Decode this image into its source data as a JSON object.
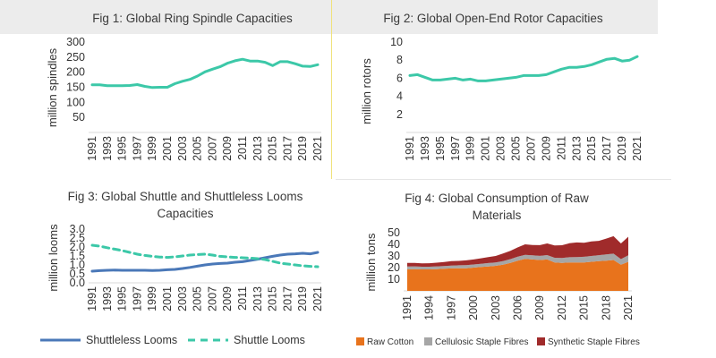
{
  "colors": {
    "teal": "#3cc8a8",
    "blue": "#4a78b8",
    "raw_cotton": "#e8731c",
    "cellulosic": "#a6a6a6",
    "synthetic": "#a02b2b",
    "axis": "#d9d9d9",
    "text": "#333333"
  },
  "chart_data": [
    {
      "type": "line",
      "title": "Fig 1: Global Ring Spindle Capacities",
      "ylabel": "million spindles",
      "xlabel": "",
      "yticks": [
        50,
        100,
        150,
        200,
        250,
        300
      ],
      "ylim": [
        0,
        300
      ],
      "grid": false,
      "x": [
        1991,
        1992,
        1993,
        1994,
        1995,
        1996,
        1997,
        1998,
        1999,
        2000,
        2001,
        2002,
        2003,
        2004,
        2005,
        2006,
        2007,
        2008,
        2009,
        2010,
        2011,
        2012,
        2013,
        2014,
        2015,
        2016,
        2017,
        2018,
        2019,
        2020,
        2021
      ],
      "xticks": [
        1991,
        1993,
        1995,
        1997,
        1999,
        2001,
        2003,
        2005,
        2007,
        2009,
        2011,
        2013,
        2015,
        2017,
        2019,
        2021
      ],
      "series": [
        {
          "values": [
            158,
            158,
            155,
            155,
            155,
            156,
            159,
            153,
            149,
            150,
            150,
            162,
            170,
            176,
            187,
            201,
            210,
            218,
            230,
            238,
            243,
            237,
            237,
            233,
            222,
            235,
            235,
            228,
            220,
            219,
            225
          ]
        }
      ]
    },
    {
      "type": "line",
      "title": "Fig 2: Global Open-End Rotor Capacities",
      "ylabel": "million rotors",
      "xlabel": "",
      "yticks": [
        2,
        4,
        6,
        8,
        10
      ],
      "ylim": [
        0,
        10
      ],
      "grid": false,
      "x": [
        1991,
        1992,
        1993,
        1994,
        1995,
        1996,
        1997,
        1998,
        1999,
        2000,
        2001,
        2002,
        2003,
        2004,
        2005,
        2006,
        2007,
        2008,
        2009,
        2010,
        2011,
        2012,
        2013,
        2014,
        2015,
        2016,
        2017,
        2018,
        2019,
        2020,
        2021
      ],
      "xticks": [
        1991,
        1993,
        1995,
        1997,
        1999,
        2001,
        2003,
        2005,
        2007,
        2009,
        2011,
        2013,
        2015,
        2017,
        2019,
        2021
      ],
      "series": [
        {
          "values": [
            6.3,
            6.4,
            6.1,
            5.8,
            5.8,
            5.9,
            6.0,
            5.8,
            5.9,
            5.7,
            5.7,
            5.8,
            5.9,
            6.0,
            6.1,
            6.3,
            6.3,
            6.3,
            6.4,
            6.7,
            7.0,
            7.2,
            7.2,
            7.3,
            7.5,
            7.8,
            8.1,
            8.2,
            7.9,
            8.0,
            8.4
          ]
        }
      ]
    },
    {
      "type": "line",
      "title": "Fig 3: Global Shuttle and Shuttleless Looms Capacities",
      "title_lines": [
        "Fig 3: Global Shuttle and Shuttleless Looms",
        "Capacities"
      ],
      "ylabel": "million looms",
      "xlabel": "",
      "yticks": [
        "0.0",
        "0.5",
        "1.0",
        "1.5",
        "2.0",
        "2.5",
        "3.0"
      ],
      "ylim": [
        0,
        3
      ],
      "grid": false,
      "legend": "bottom",
      "x": [
        1991,
        1992,
        1993,
        1994,
        1995,
        1996,
        1997,
        1998,
        1999,
        2000,
        2001,
        2002,
        2003,
        2004,
        2005,
        2006,
        2007,
        2008,
        2009,
        2010,
        2011,
        2012,
        2013,
        2014,
        2015,
        2016,
        2017,
        2018,
        2019,
        2020,
        2021
      ],
      "xticks": [
        1991,
        1993,
        1995,
        1997,
        1999,
        2001,
        2003,
        2005,
        2007,
        2009,
        2011,
        2013,
        2015,
        2017,
        2019,
        2021
      ],
      "series": [
        {
          "name": "Shuttleless Looms",
          "style": "solid",
          "values": [
            0.65,
            0.68,
            0.7,
            0.71,
            0.7,
            0.7,
            0.7,
            0.7,
            0.69,
            0.7,
            0.73,
            0.75,
            0.8,
            0.86,
            0.93,
            1.0,
            1.05,
            1.08,
            1.1,
            1.15,
            1.18,
            1.25,
            1.32,
            1.4,
            1.48,
            1.55,
            1.6,
            1.62,
            1.65,
            1.62,
            1.7
          ]
        },
        {
          "name": "Shuttle Looms",
          "style": "dashed",
          "values": [
            2.1,
            2.05,
            1.96,
            1.88,
            1.8,
            1.7,
            1.6,
            1.53,
            1.48,
            1.44,
            1.42,
            1.45,
            1.5,
            1.55,
            1.58,
            1.6,
            1.55,
            1.48,
            1.45,
            1.42,
            1.4,
            1.38,
            1.35,
            1.3,
            1.2,
            1.1,
            1.05,
            1.0,
            0.95,
            0.92,
            0.9
          ]
        }
      ]
    },
    {
      "type": "area",
      "stacked": true,
      "title": "Fig 4: Global Consumption of Raw Materials",
      "title_lines": [
        "Fig 4: Global Consumption of Raw",
        "Materials"
      ],
      "ylabel": "million tons",
      "xlabel": "",
      "yticks": [
        10,
        20,
        30,
        40,
        50
      ],
      "ylim": [
        0,
        50
      ],
      "grid": false,
      "legend": "bottom",
      "x": [
        1991,
        1992,
        1993,
        1994,
        1995,
        1996,
        1997,
        1998,
        1999,
        2000,
        2001,
        2002,
        2003,
        2004,
        2005,
        2006,
        2007,
        2008,
        2009,
        2010,
        2011,
        2012,
        2013,
        2014,
        2015,
        2016,
        2017,
        2018,
        2019,
        2020,
        2021
      ],
      "xticks": [
        1991,
        1994,
        1997,
        2000,
        2003,
        2006,
        2009,
        2012,
        2015,
        2018,
        2021
      ],
      "series": [
        {
          "name": "Raw Cotton",
          "values": [
            18.5,
            18.7,
            18.5,
            18.5,
            18.7,
            19.0,
            19.3,
            19.5,
            19.5,
            20.0,
            20.5,
            21.0,
            21.5,
            22.5,
            24.0,
            26.0,
            27.5,
            27.0,
            26.5,
            27.0,
            24.5,
            24.0,
            24.5,
            24.5,
            24.5,
            25.0,
            25.5,
            26.0,
            26.5,
            22.5,
            25.0
          ]
        },
        {
          "name": "Cellulosic Staple Fibres",
          "values": [
            2.5,
            2.4,
            2.3,
            2.3,
            2.4,
            2.4,
            2.5,
            2.5,
            2.6,
            2.7,
            2.8,
            2.9,
            3.0,
            3.1,
            3.3,
            3.4,
            3.5,
            3.5,
            3.6,
            3.8,
            4.0,
            4.2,
            4.4,
            4.6,
            4.8,
            5.0,
            5.2,
            5.4,
            5.5,
            4.8,
            5.5
          ]
        },
        {
          "name": "Synthetic Staple Fibres",
          "values": [
            3.0,
            3.0,
            2.9,
            3.0,
            3.1,
            3.4,
            3.7,
            3.8,
            4.1,
            4.3,
            4.7,
            5.1,
            5.5,
            6.5,
            7.2,
            8.0,
            9.0,
            9.0,
            9.2,
            10.0,
            10.5,
            11.0,
            12.0,
            12.5,
            12.0,
            12.5,
            12.3,
            13.5,
            15.0,
            13.5,
            16.0
          ]
        }
      ]
    }
  ]
}
